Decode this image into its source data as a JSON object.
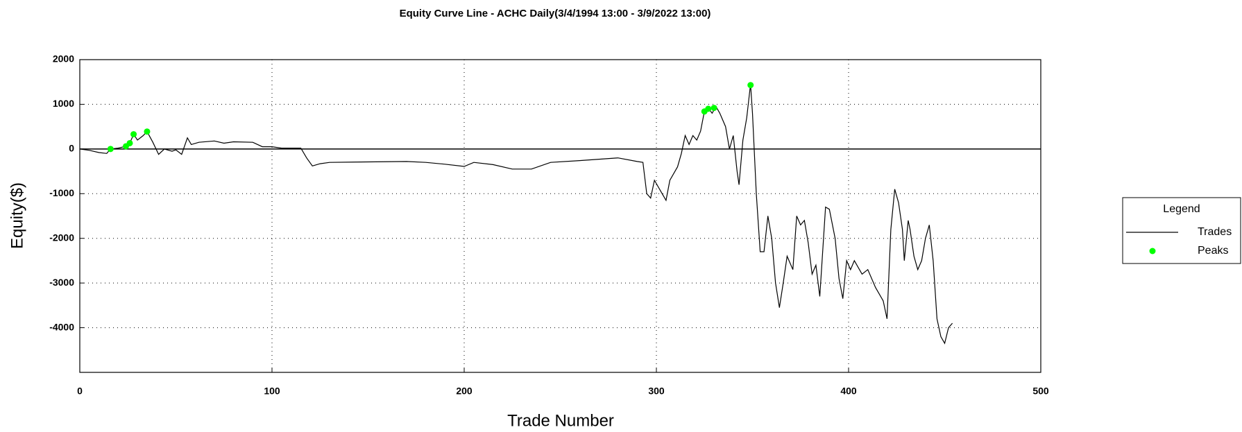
{
  "chart_data": {
    "type": "line",
    "title": "Equity Curve Line - ACHC Daily(3/4/1994 13:00 - 3/9/2022 13:00)",
    "xlabel": "Trade Number",
    "ylabel": "Equity($)",
    "xlim": [
      0,
      500
    ],
    "xticks": [
      0,
      100,
      200,
      300,
      400,
      500
    ],
    "ylim": [
      -5000,
      2000
    ],
    "yticks": [
      -4000,
      -3000,
      -2000,
      -1000,
      0,
      1000,
      2000
    ],
    "grid": true,
    "legend_title": "Legend",
    "legend": "right",
    "series": [
      {
        "name": "Trades",
        "color": "#000000",
        "kind": "line",
        "x": [
          0,
          5,
          10,
          14,
          16,
          20,
          24,
          26,
          28,
          30,
          33,
          35,
          38,
          41,
          44,
          48,
          50,
          53,
          56,
          58,
          62,
          70,
          75,
          80,
          90,
          95,
          100,
          105,
          110,
          115,
          118,
          121,
          125,
          130,
          150,
          170,
          180,
          190,
          200,
          205,
          215,
          225,
          235,
          245,
          260,
          280,
          290,
          293,
          295,
          297,
          299,
          303,
          305,
          307,
          311,
          313,
          315,
          317,
          319,
          321,
          323,
          325,
          327,
          329,
          331,
          333,
          336,
          338,
          340,
          342,
          343,
          345,
          347,
          349,
          350,
          352,
          354,
          356,
          358,
          360,
          362,
          364,
          366,
          368,
          371,
          373,
          375,
          377,
          379,
          381,
          383,
          385,
          388,
          390,
          393,
          395,
          397,
          399,
          401,
          403,
          407,
          410,
          414,
          418,
          420,
          422,
          424,
          426,
          428,
          429,
          431,
          432,
          434,
          436,
          438,
          440,
          442,
          444,
          446,
          448,
          450,
          452,
          454
        ],
        "values": [
          0,
          -30,
          -80,
          -100,
          0,
          20,
          60,
          130,
          330,
          200,
          300,
          390,
          150,
          -120,
          0,
          -50,
          -20,
          -120,
          250,
          100,
          150,
          180,
          130,
          160,
          150,
          50,
          50,
          20,
          20,
          20,
          -200,
          -380,
          -330,
          -300,
          -290,
          -280,
          -300,
          -340,
          -390,
          -300,
          -350,
          -450,
          -450,
          -300,
          -260,
          -200,
          -280,
          -300,
          -1000,
          -1100,
          -700,
          -1000,
          -1150,
          -700,
          -400,
          -100,
          300,
          100,
          300,
          200,
          400,
          850,
          920,
          800,
          950,
          800,
          500,
          0,
          300,
          -500,
          -800,
          200,
          700,
          1450,
          800,
          -1000,
          -2300,
          -2300,
          -1500,
          -2000,
          -3000,
          -3550,
          -3000,
          -2400,
          -2700,
          -1500,
          -1700,
          -1600,
          -2100,
          -2800,
          -2600,
          -3300,
          -1300,
          -1350,
          -2000,
          -2900,
          -3350,
          -2500,
          -2700,
          -2500,
          -2800,
          -2700,
          -3100,
          -3400,
          -3800,
          -1800,
          -900,
          -1200,
          -1800,
          -2500,
          -1600,
          -1800,
          -2400,
          -2700,
          -2500,
          -2000,
          -1700,
          -2500,
          -3800,
          -4200,
          -4350,
          -4000,
          -3900
        ]
      },
      {
        "name": "Peaks",
        "color": "#00ff00",
        "kind": "scatter",
        "x": [
          16,
          24,
          26,
          28,
          35,
          325,
          327,
          330,
          349
        ],
        "values": [
          0,
          60,
          130,
          330,
          390,
          840,
          900,
          920,
          1430
        ]
      }
    ]
  }
}
